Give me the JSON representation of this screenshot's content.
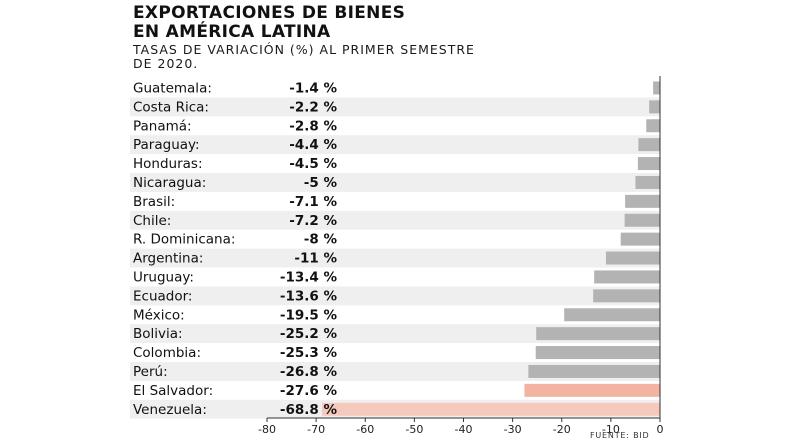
{
  "header": {
    "title_line1": "EXPORTACIONES DE BIENES",
    "title_line2": "EN AMÉRICA LATINA",
    "subtitle_line1": "TASAS DE VARIACIÓN (%) AL PRIMER SEMESTRE",
    "subtitle_line2": "DE 2020."
  },
  "source": "FUENTE: BID",
  "colors": {
    "bar": "#b3b3b3",
    "highlight": "#f2b3a3",
    "highlight_light": "#f6c9bd",
    "zebra": "#efefef"
  },
  "chart_data": {
    "type": "bar",
    "orientation": "horizontal",
    "categories": [
      "Guatemala:",
      "Costa Rica:",
      "Panamá:",
      "Paraguay:",
      "Honduras:",
      "Nicaragua:",
      "Brasil:",
      "Chile:",
      "R. Dominicana:",
      "Argentina:",
      "Uruguay:",
      "Ecuador:",
      "México:",
      "Bolivia:",
      "Colombia:",
      "Perú:",
      "El Salvador:",
      "Venezuela:"
    ],
    "values": [
      -1.4,
      -2.2,
      -2.8,
      -4.4,
      -4.5,
      -5,
      -7.1,
      -7.2,
      -8,
      -11,
      -13.4,
      -13.6,
      -19.5,
      -25.2,
      -25.3,
      -26.8,
      -27.6,
      -68.8
    ],
    "value_labels": [
      "-1.4 %",
      "-2.2 %",
      "-2.8 %",
      "-4.4 %",
      "-4.5 %",
      "-5 %",
      "-7.1 %",
      "-7.2 %",
      "-8 %",
      "-11 %",
      "-13.4 %",
      "-13.6 %",
      "-19.5 %",
      "-25.2 %",
      "-25.3 %",
      "-26.8 %",
      "-27.6 %",
      "-68.8 %"
    ],
    "highlighted": [
      "El Salvador:",
      "Venezuela:"
    ],
    "xlim": [
      -80,
      0
    ],
    "xticks": [
      -80,
      -70,
      -60,
      -50,
      -40,
      -30,
      -20,
      -10,
      0
    ],
    "tick_labels": [
      "-80",
      "-70",
      "-60",
      "-50",
      "-40",
      "-30",
      "-20",
      "-10",
      "0"
    ],
    "title": "EXPORTACIONES DE BIENES EN AMÉRICA LATINA",
    "subtitle": "TASAS DE VARIACIÓN (%) AL PRIMER SEMESTRE DE 2020.",
    "grid": false,
    "legend": false
  }
}
